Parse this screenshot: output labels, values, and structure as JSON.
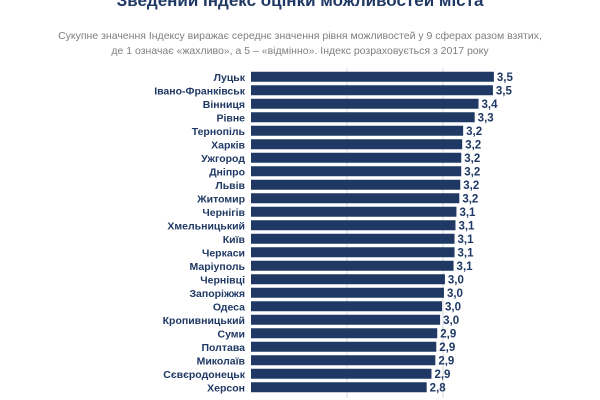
{
  "title": "Зведений Індекс оцінки можливостей міста",
  "subtitle_line1": "Сукупне значення Індексу виражає середнє значення рівня можливостей у 9 сферах разом взятих,",
  "subtitle_line2": "де 1 означає «жахливо», а 5 – «відмінно». Індекс розраховується з 2017 року",
  "colors": {
    "bar": "#1f3864",
    "text": "#1f3864",
    "grid": "#d9d9d9",
    "subtitle": "#7f7f7f"
  },
  "chart_data": {
    "type": "bar",
    "orientation": "horizontal",
    "categories": [
      "Луцьк",
      "Івано-Франківськ",
      "Вінниця",
      "Рівне",
      "Тернопіль",
      "Харків",
      "Ужгород",
      "Дніпро",
      "Львів",
      "Житомир",
      "Чернігів",
      "Хмельницький",
      "Київ",
      "Черкаси",
      "Маріуполь",
      "Чернівці",
      "Запоріжжя",
      "Одеса",
      "Кропивницький",
      "Суми",
      "Полтава",
      "Миколаїв",
      "Сєвєродонецьк",
      "Херсон"
    ],
    "values": [
      3.53,
      3.52,
      3.37,
      3.33,
      3.21,
      3.2,
      3.19,
      3.19,
      3.18,
      3.17,
      3.14,
      3.13,
      3.12,
      3.12,
      3.11,
      3.02,
      3.01,
      2.99,
      2.97,
      2.94,
      2.93,
      2.92,
      2.88,
      2.83
    ],
    "labels": [
      "3,5",
      "3,5",
      "3,4",
      "3,3",
      "3,2",
      "3,2",
      "3,2",
      "3,2",
      "3,2",
      "3,2",
      "3,1",
      "3,1",
      "3,1",
      "3,1",
      "3,1",
      "3,0",
      "3,0",
      "3,0",
      "3,0",
      "2,9",
      "2,9",
      "2,9",
      "2,9",
      "2,8"
    ],
    "xlim": [
      1,
      5
    ],
    "grid": true
  }
}
